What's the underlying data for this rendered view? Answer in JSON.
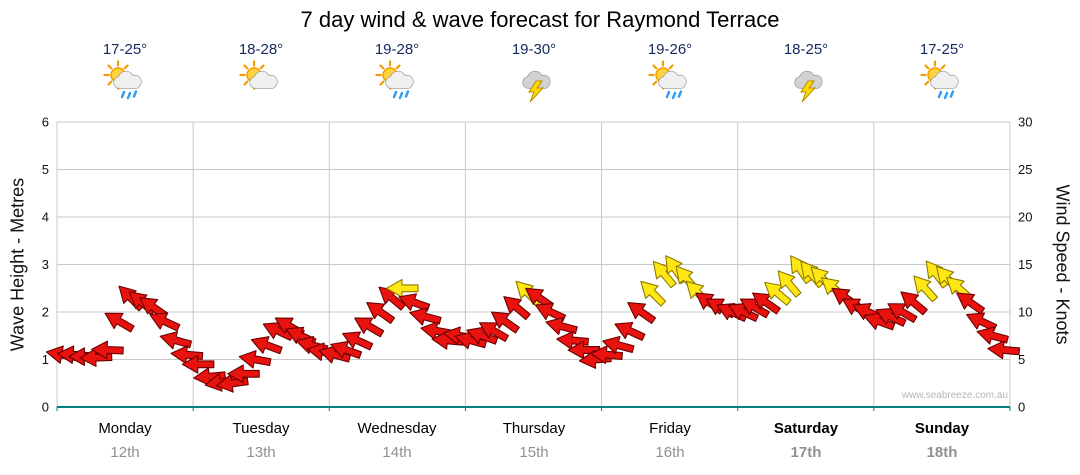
{
  "title": "7 day wind & wave forecast for Raymond Terrace",
  "watermark": "www.seabreeze.com.au",
  "days": [
    {
      "name": "Monday",
      "date": "12th",
      "temp": "17-25°",
      "icon": "sun-cloud-rain"
    },
    {
      "name": "Tuesday",
      "date": "13th",
      "temp": "18-28°",
      "icon": "sun-cloud"
    },
    {
      "name": "Wednesday",
      "date": "14th",
      "temp": "19-28°",
      "icon": "sun-cloud-rain"
    },
    {
      "name": "Thursday",
      "date": "15th",
      "temp": "19-30°",
      "icon": "cloud-lightning"
    },
    {
      "name": "Friday",
      "date": "16th",
      "temp": "19-26°",
      "icon": "sun-cloud-rain"
    },
    {
      "name": "Saturday",
      "date": "17th",
      "temp": "18-25°",
      "icon": "cloud-lightning"
    },
    {
      "name": "Sunday",
      "date": "18th",
      "temp": "17-25°",
      "icon": "sun-cloud-rain"
    }
  ],
  "chart_data": {
    "type": "wind-arrow-series",
    "title": "7 day wind & wave forecast for Raymond Terrace",
    "x_categories": [
      "Monday 12th",
      "Tuesday 13th",
      "Wednesday 14th",
      "Thursday 15th",
      "Friday 16th",
      "Saturday 17th",
      "Sunday 18th"
    ],
    "left_axis": {
      "label": "Wave Height - Metres",
      "min": 0,
      "max": 6,
      "ticks": [
        0,
        1,
        2,
        3,
        4,
        5,
        6
      ]
    },
    "right_axis": {
      "label": "Wind Speed - Knots",
      "min": 0,
      "max": 30,
      "ticks": [
        0,
        5,
        10,
        15,
        20,
        25,
        30
      ]
    },
    "grid": true,
    "legend": false,
    "points_per_day": 12,
    "wind_knots": [
      5.5,
      5.5,
      5.3,
      5.2,
      6,
      9,
      11.5,
      11,
      10.5,
      9,
      7,
      5.5,
      4.5,
      3.2,
      2.6,
      2.5,
      3.5,
      5,
      6.5,
      8,
      8.5,
      7.5,
      6.5,
      5.8,
      5.5,
      6,
      7,
      8.5,
      10,
      11.5,
      12.5,
      11,
      9.5,
      8,
      7,
      7.5,
      7,
      7.5,
      8,
      9,
      10.5,
      12,
      11.5,
      10,
      8.5,
      7,
      6,
      5,
      5.5,
      6.5,
      8,
      10,
      12,
      14,
      14.5,
      13.5,
      12,
      11,
      10.5,
      10,
      10,
      10.5,
      11,
      12,
      13,
      14.5,
      14,
      13.5,
      12.5,
      11.5,
      10.5,
      10,
      9,
      9.5,
      10,
      11,
      12.5,
      14,
      13.5,
      12.5,
      11,
      9,
      7.5,
      6
    ],
    "arrow_rotation_deg": [
      190,
      185,
      180,
      178,
      182,
      210,
      225,
      220,
      215,
      205,
      195,
      185,
      180,
      175,
      170,
      172,
      180,
      190,
      200,
      205,
      210,
      205,
      195,
      190,
      195,
      200,
      205,
      210,
      215,
      220,
      180,
      200,
      195,
      190,
      185,
      190,
      195,
      200,
      210,
      215,
      220,
      225,
      215,
      205,
      195,
      185,
      180,
      175,
      185,
      195,
      205,
      215,
      225,
      230,
      235,
      230,
      225,
      215,
      210,
      205,
      205,
      210,
      215,
      220,
      230,
      235,
      230,
      225,
      220,
      215,
      210,
      205,
      200,
      205,
      210,
      220,
      228,
      232,
      228,
      222,
      215,
      205,
      195,
      185
    ],
    "arrow_color_key": [
      "r",
      "r",
      "r",
      "r",
      "r",
      "r",
      "r",
      "r",
      "r",
      "r",
      "r",
      "r",
      "r",
      "r",
      "r",
      "r",
      "r",
      "r",
      "r",
      "r",
      "r",
      "r",
      "r",
      "r",
      "r",
      "r",
      "r",
      "r",
      "r",
      "r",
      "y",
      "r",
      "r",
      "r",
      "r",
      "r",
      "r",
      "r",
      "r",
      "r",
      "r",
      "y",
      "r",
      "r",
      "r",
      "r",
      "r",
      "r",
      "r",
      "r",
      "r",
      "r",
      "y",
      "y",
      "y",
      "y",
      "y",
      "r",
      "r",
      "r",
      "r",
      "r",
      "r",
      "y",
      "y",
      "y",
      "y",
      "y",
      "y",
      "r",
      "r",
      "r",
      "r",
      "r",
      "r",
      "r",
      "y",
      "y",
      "y",
      "y",
      "r",
      "r",
      "r",
      "r"
    ],
    "colors": {
      "arrow_red": "#e8120e",
      "arrow_red_outline": "#6b0000",
      "arrow_yellow": "#ffe715",
      "arrow_yellow_outline": "#8f7a00",
      "grid": "#c9c9c9",
      "baseline": "#008080",
      "temp_text": "#14295e",
      "date_text": "#909090"
    }
  }
}
